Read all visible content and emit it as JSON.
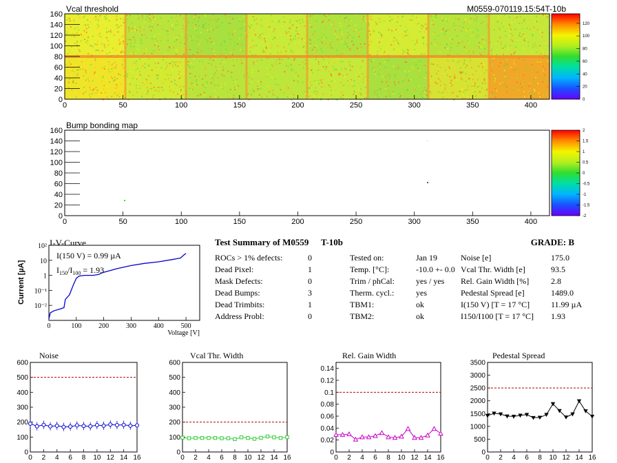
{
  "header": {
    "right_title": "M0559-070119.15:54T-10b"
  },
  "heatmaps": [
    {
      "title": "Vcal threshold",
      "x_ticks": [
        "0",
        "50",
        "100",
        "150",
        "200",
        "250",
        "300",
        "350",
        "400"
      ],
      "y_ticks": [
        "0",
        "20",
        "40",
        "60",
        "80",
        "100",
        "120",
        "140",
        "160"
      ],
      "xlim": [
        0,
        416
      ],
      "ylim": [
        0,
        160
      ],
      "palette_ticks": [
        "0",
        "20",
        "40",
        "60",
        "80",
        "100",
        "120"
      ],
      "palette_range": [
        0,
        135
      ]
    },
    {
      "title": "Bump bonding map",
      "x_ticks": [
        "0",
        "50",
        "100",
        "150",
        "200",
        "250",
        "300",
        "350",
        "400"
      ],
      "y_ticks": [
        "0",
        "20",
        "40",
        "60",
        "80",
        "100",
        "120",
        "140",
        "160"
      ],
      "xlim": [
        0,
        416
      ],
      "ylim": [
        0,
        160
      ],
      "palette_ticks": [
        "2",
        "1.5",
        "1",
        "0.5",
        "0",
        "-0.5",
        "-1",
        "-1.5",
        "-2"
      ],
      "palette_range": [
        -2,
        2
      ]
    }
  ],
  "iv": {
    "title": "I-V-Curve",
    "ylabel": "Current [µA]",
    "xlabel": "Voltage [V]",
    "x_ticks": [
      "0",
      "100",
      "200",
      "300",
      "400",
      "500"
    ],
    "y_ticks": [
      "10⁻²",
      "10⁻¹",
      "1",
      "10",
      "10²"
    ],
    "ann1": "I(150 V) = 0.99 µA",
    "ann2_a": "I",
    "ann2_sub1": "150",
    "ann2_b": "/I",
    "ann2_sub2": "100",
    "ann2_c": " = 1.93"
  },
  "summary": {
    "title": "Test Summary of M0559",
    "tag": "T-10b",
    "grade": "GRADE:  B",
    "col1": [
      {
        "label": "ROCs > 1% defects:",
        "value": "0"
      },
      {
        "label": "Dead Pixel:",
        "value": "1"
      },
      {
        "label": "Mask Defects:",
        "value": "0"
      },
      {
        "label": "Dead Bumps:",
        "value": "3"
      },
      {
        "label": "Dead Trimbits:",
        "value": "1"
      },
      {
        "label": "Address Probl:",
        "value": "0"
      }
    ],
    "col2": [
      {
        "label": "Tested on:",
        "value": "Jan 19"
      },
      {
        "label": "Temp. [°C]:",
        "value": "-10.0 +- 0.0"
      },
      {
        "label": "Trim / phCal:",
        "value": "yes / yes"
      },
      {
        "label": "Therm. cycl.:",
        "value": "yes"
      },
      {
        "label": "TBM1:",
        "value": "ok"
      },
      {
        "label": "TBM2:",
        "value": "ok"
      }
    ],
    "col3": [
      {
        "label": "Noise [e]",
        "value": "175.0"
      },
      {
        "label": "Vcal Thr. Width [e]",
        "value": "93.5"
      },
      {
        "label": "Rel. Gain Width [%]",
        "value": "2.8"
      },
      {
        "label": "Pedestal Spread [e]",
        "value": "1489.0"
      },
      {
        "label": "I(150 V) [T = 17 °C]",
        "value": "11.99 µA"
      },
      {
        "label": "I150/I100 [T = 17 °C]",
        "value": "1.93"
      }
    ]
  },
  "chart_data": [
    {
      "type": "line",
      "title": "Noise",
      "x": [
        0,
        1,
        2,
        3,
        4,
        5,
        6,
        7,
        8,
        9,
        10,
        11,
        12,
        13,
        14,
        15,
        16
      ],
      "values": [
        190,
        172,
        182,
        172,
        176,
        168,
        170,
        178,
        174,
        172,
        180,
        176,
        184,
        180,
        182,
        176,
        178
      ],
      "ylim": [
        0,
        600
      ],
      "xlim": [
        0,
        16
      ],
      "y_ticks": [
        "0",
        "100",
        "200",
        "300",
        "400",
        "500",
        "600"
      ],
      "x_ticks": [
        "0",
        "2",
        "4",
        "6",
        "8",
        "10",
        "12",
        "14",
        "16"
      ],
      "threshold": 500,
      "color": "#0000cc",
      "marker": "circle"
    },
    {
      "type": "line",
      "title": "Vcal Thr. Width",
      "x": [
        0,
        1,
        2,
        3,
        4,
        5,
        6,
        7,
        8,
        9,
        10,
        11,
        12,
        13,
        14,
        15,
        16
      ],
      "values": [
        96,
        92,
        94,
        94,
        94,
        94,
        92,
        92,
        86,
        98,
        94,
        88,
        95,
        104,
        98,
        94,
        99
      ],
      "ylim": [
        0,
        600
      ],
      "xlim": [
        0,
        16
      ],
      "y_ticks": [
        "0",
        "100",
        "200",
        "300",
        "400",
        "500",
        "600"
      ],
      "x_ticks": [
        "0",
        "2",
        "4",
        "6",
        "8",
        "10",
        "12",
        "14",
        "16"
      ],
      "threshold": 200,
      "color": "#33cc33",
      "marker": "square"
    },
    {
      "type": "line",
      "title": "Rel. Gain Width",
      "x": [
        0,
        1,
        2,
        3,
        4,
        5,
        6,
        7,
        8,
        9,
        10,
        11,
        12,
        13,
        14,
        15,
        16
      ],
      "values": [
        0.029,
        0.029,
        0.03,
        0.021,
        0.025,
        0.025,
        0.027,
        0.032,
        0.025,
        0.024,
        0.026,
        0.039,
        0.024,
        0.024,
        0.028,
        0.039,
        0.031
      ],
      "ylim": [
        0,
        0.15
      ],
      "xlim": [
        0,
        16
      ],
      "y_ticks": [
        "0",
        "0.02",
        "0.04",
        "0.06",
        "0.08",
        "0.1",
        "0.12",
        "0.14"
      ],
      "x_ticks": [
        "0",
        "2",
        "4",
        "6",
        "8",
        "10",
        "12",
        "14",
        "16"
      ],
      "threshold": 0.1,
      "color": "#cc00cc",
      "marker": "triangle"
    },
    {
      "type": "line",
      "title": "Pedestal Spread",
      "x": [
        0,
        1,
        2,
        3,
        4,
        5,
        6,
        7,
        8,
        9,
        10,
        11,
        12,
        13,
        14,
        15,
        16
      ],
      "values": [
        1420,
        1510,
        1480,
        1400,
        1390,
        1430,
        1460,
        1340,
        1350,
        1460,
        1880,
        1610,
        1360,
        1480,
        1990,
        1600,
        1390
      ],
      "ylim": [
        0,
        3500
      ],
      "xlim": [
        0,
        16
      ],
      "y_ticks": [
        "0",
        "500",
        "1000",
        "1500",
        "2000",
        "2500",
        "3000",
        "3500"
      ],
      "x_ticks": [
        "0",
        "2",
        "4",
        "6",
        "8",
        "10",
        "12",
        "14",
        "16"
      ],
      "threshold": 2500,
      "color": "#000000",
      "marker": "triangle-down"
    }
  ]
}
